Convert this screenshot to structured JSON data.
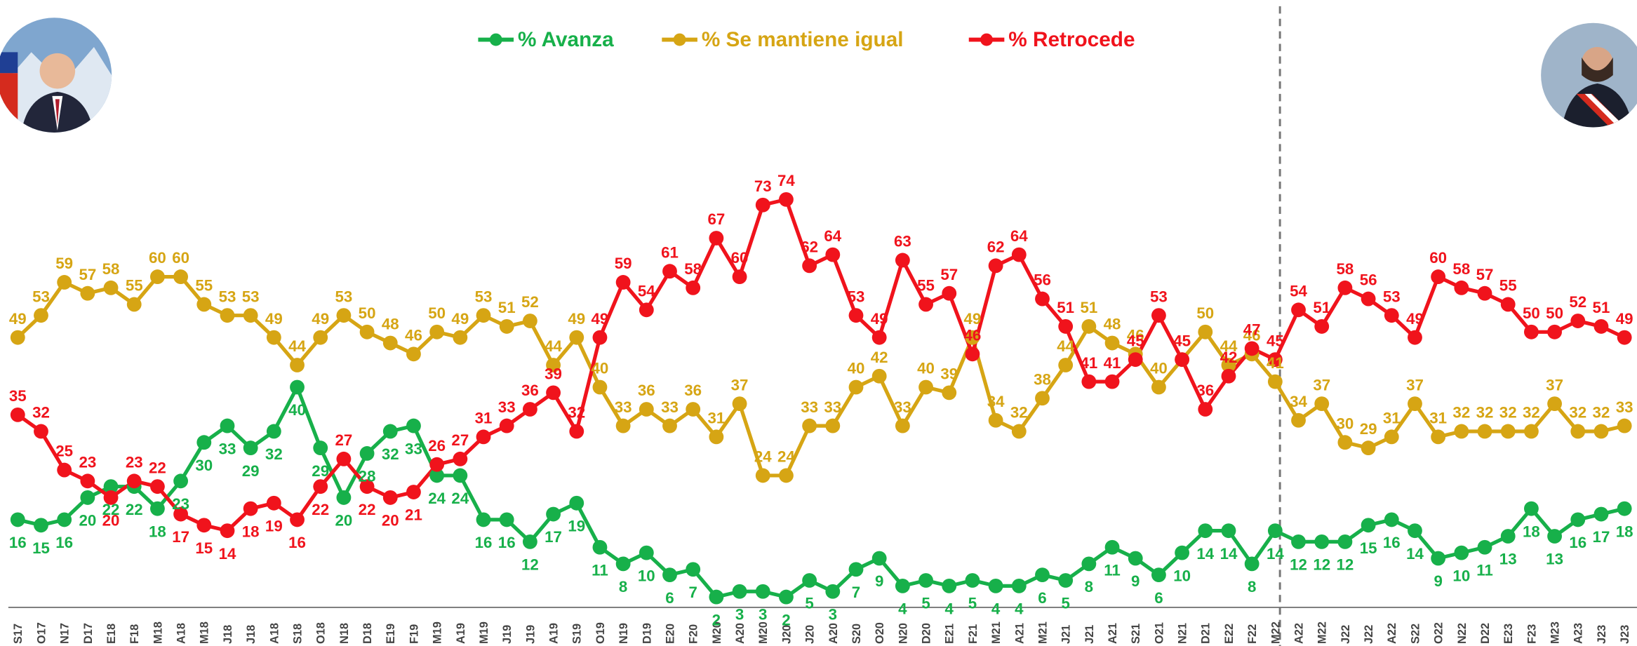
{
  "chart_data": {
    "type": "line",
    "categories": [
      "S17",
      "O17",
      "N17",
      "D17",
      "E18",
      "F18",
      "M18",
      "A18",
      "M18",
      "J18",
      "J18",
      "A18",
      "S18",
      "O18",
      "N18",
      "D18",
      "E19",
      "F19",
      "M19",
      "A19",
      "M19",
      "J19",
      "J19",
      "A19",
      "S19",
      "O19",
      "N19",
      "D19",
      "E20",
      "F20",
      "M20",
      "A20",
      "M20",
      "J20",
      "J20",
      "A20",
      "S20",
      "O20",
      "N20",
      "D20",
      "E21",
      "F21",
      "M21",
      "A21",
      "M21",
      "J21",
      "J21",
      "A21",
      "S21",
      "O21",
      "N21",
      "D21",
      "E22",
      "F22",
      "M22",
      "A22",
      "M22",
      "J22",
      "J22",
      "A22",
      "S22",
      "O22",
      "N22",
      "D22",
      "E23",
      "F23",
      "M23",
      "A23",
      "J23",
      "J23"
    ],
    "series": [
      {
        "name": "% Avanza",
        "color": "#17b04a",
        "values": [
          16,
          15,
          16,
          20,
          22,
          22,
          18,
          23,
          30,
          33,
          29,
          32,
          40,
          29,
          20,
          28,
          32,
          33,
          24,
          24,
          16,
          16,
          12,
          17,
          19,
          11,
          8,
          10,
          6,
          7,
          2,
          3,
          3,
          2,
          5,
          3,
          7,
          9,
          4,
          5,
          4,
          5,
          4,
          4,
          6,
          5,
          8,
          11,
          9,
          6,
          10,
          14,
          14,
          8,
          14,
          12,
          12,
          12,
          15,
          16,
          14,
          9,
          10,
          11,
          13,
          18,
          13,
          16,
          17,
          18
        ]
      },
      {
        "name": "% Se mantiene igual",
        "color": "#d6a514",
        "values": [
          49,
          53,
          59,
          57,
          58,
          55,
          60,
          60,
          55,
          53,
          53,
          49,
          44,
          49,
          53,
          50,
          48,
          46,
          50,
          49,
          53,
          51,
          52,
          44,
          49,
          40,
          33,
          36,
          33,
          36,
          31,
          37,
          24,
          24,
          33,
          33,
          40,
          42,
          33,
          40,
          39,
          49,
          34,
          32,
          38,
          44,
          51,
          48,
          46,
          40,
          45,
          50,
          44,
          46,
          41,
          34,
          37,
          30,
          29,
          31,
          37,
          31,
          32,
          32,
          32,
          32,
          37,
          32,
          32,
          33
        ]
      },
      {
        "name": "% Retrocede",
        "color": "#f0131c",
        "values": [
          35,
          32,
          25,
          23,
          20,
          23,
          22,
          17,
          15,
          14,
          18,
          19,
          16,
          22,
          27,
          22,
          20,
          21,
          26,
          27,
          31,
          33,
          36,
          39,
          32,
          49,
          59,
          54,
          61,
          58,
          67,
          60,
          73,
          74,
          62,
          64,
          53,
          49,
          63,
          55,
          57,
          46,
          62,
          64,
          56,
          51,
          41,
          41,
          45,
          53,
          45,
          36,
          42,
          47,
          45,
          54,
          51,
          58,
          56,
          53,
          49,
          60,
          58,
          57,
          55,
          50,
          50,
          52,
          51,
          49
        ]
      }
    ]
  }
}
